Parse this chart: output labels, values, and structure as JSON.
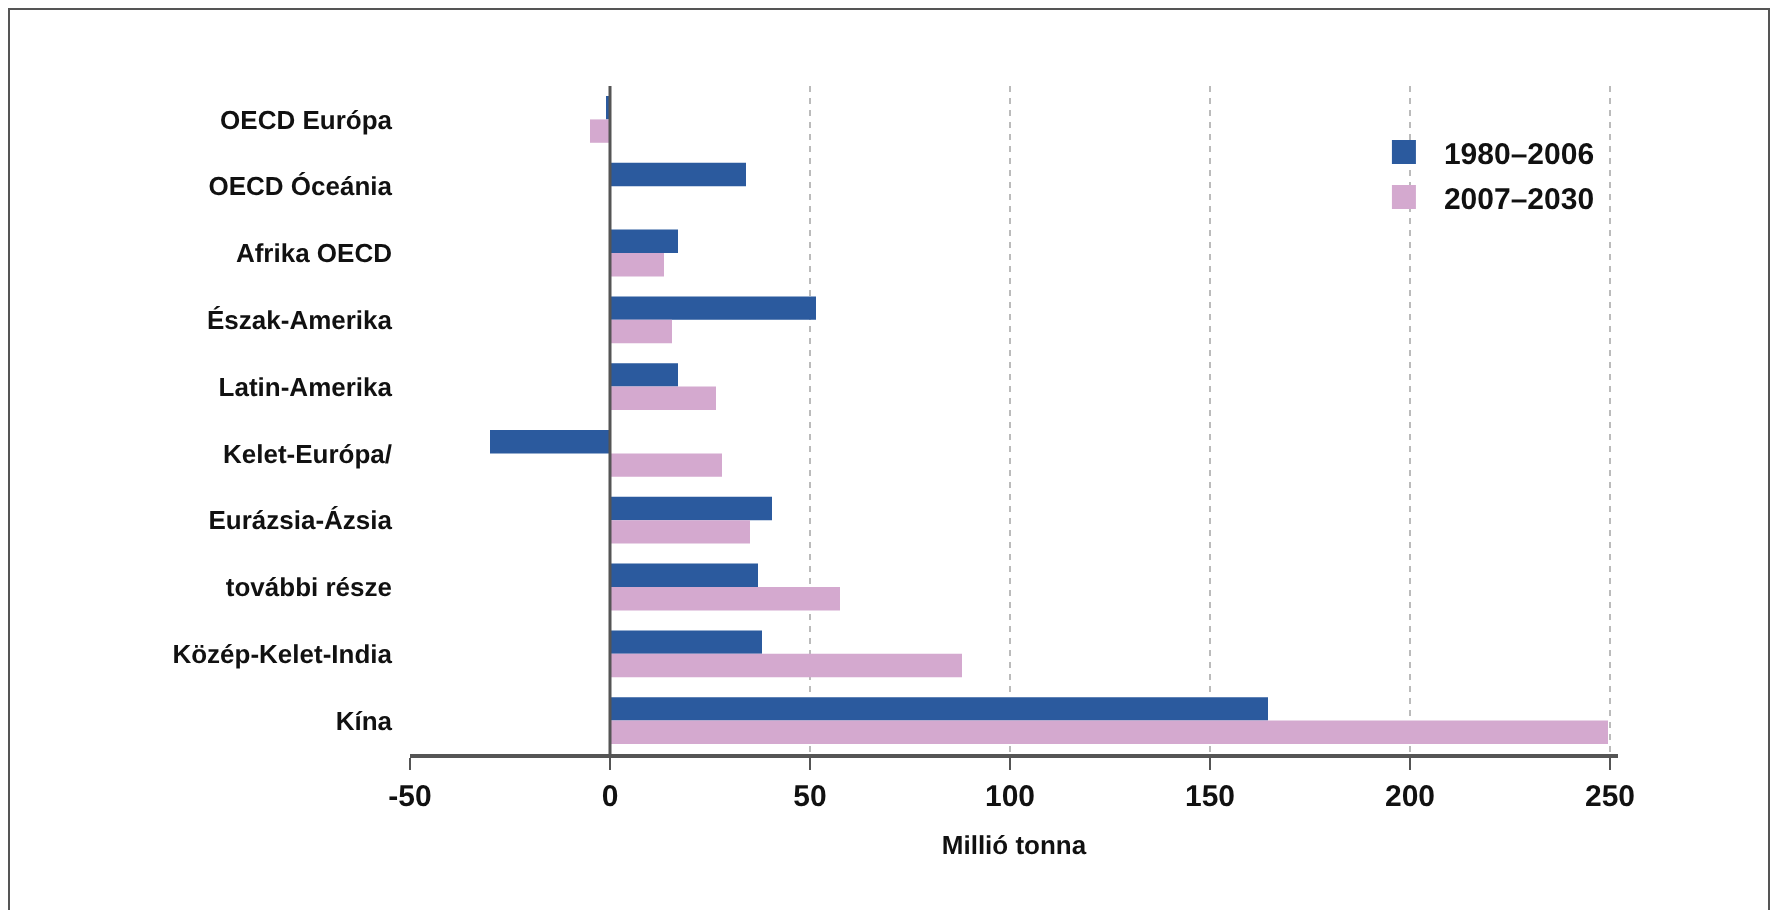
{
  "chart_data": {
    "type": "bar",
    "orientation": "horizontal",
    "xlabel": "Millió tonna",
    "categories": [
      "OECD Európa",
      "OECD Óceánia",
      "Afrika OECD",
      "Észak-Amerika",
      "Latin-Amerika",
      "Kelet-Európa/",
      "Eurázsia-Ázsia",
      "további része",
      "Közép-Kelet-India",
      "Kína"
    ],
    "series": [
      {
        "name": "1980–2006",
        "color": "#2b5a9e",
        "values": [
          -1,
          34,
          17,
          51.5,
          17,
          -30,
          40.5,
          37,
          38,
          164.5
        ]
      },
      {
        "name": "2007–2030",
        "color": "#d4a9cf",
        "values": [
          -5,
          null,
          13.5,
          15.5,
          26.5,
          28,
          35,
          57.5,
          88,
          249.5
        ]
      }
    ],
    "xlim": [
      -50,
      252
    ],
    "xticks": [
      -50,
      0,
      50,
      100,
      150,
      200,
      250
    ],
    "grid": "x",
    "legend": "top right"
  }
}
